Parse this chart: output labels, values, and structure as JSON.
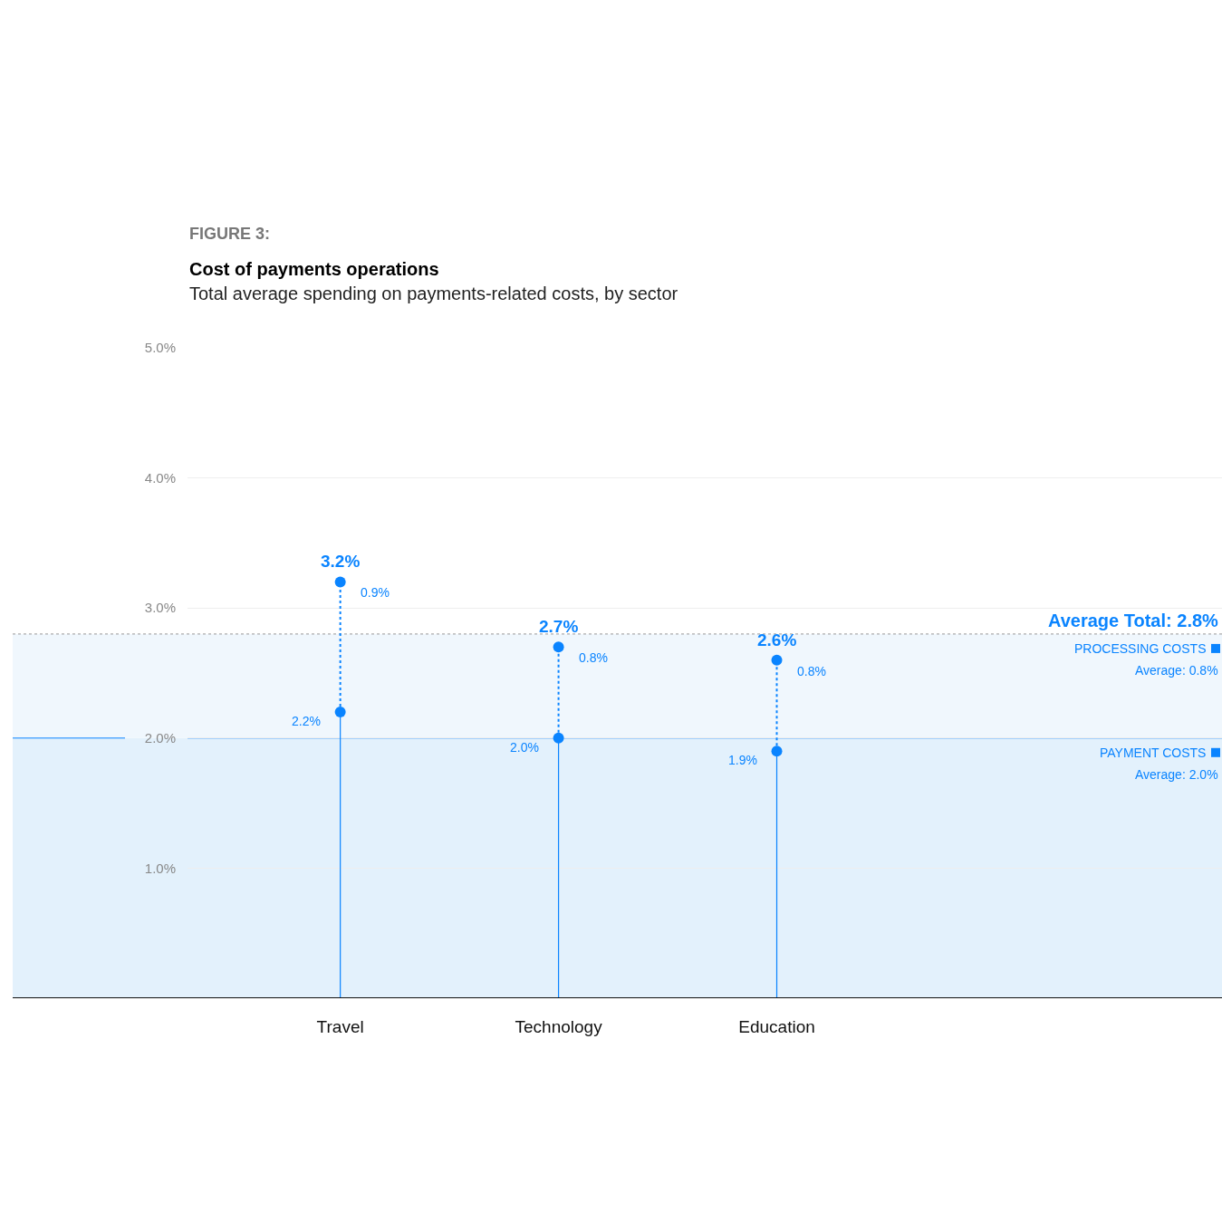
{
  "chart_data": {
    "type": "lollipop",
    "title": "Cost of payments operations",
    "subtitle": "Total average spending on payments-related costs, by sector",
    "categories": [
      "Travel",
      "Technology",
      "Education"
    ],
    "series": [
      {
        "color": "#0a84ff",
        "line_style": "solid",
        "values": [
          2.2,
          2.0,
          1.9
        ],
        "value_labels": [
          "2.2%",
          "2.0%",
          "1.9%"
        ]
      },
      {
        "color": "#0a84ff",
        "line_style": "dotted",
        "values": [
          3.2,
          2.7,
          2.6
        ],
        "value_labels": [
          "3.2%",
          "2.7%",
          "2.6%"
        ]
      }
    ],
    "ylim": [
      0,
      5
    ],
    "yticks": [
      {
        "value": 1,
        "label": "1.0%"
      },
      {
        "value": 2,
        "label": "2.0%"
      },
      {
        "value": 3,
        "label": "3.0%"
      },
      {
        "value": 4,
        "label": "4.0%"
      },
      {
        "value": 5,
        "label": "5.0%"
      }
    ],
    "grid": "y",
    "marker": "circle",
    "ref_lines": [
      {
        "axis": "y",
        "value": 2.8,
        "label": "Average Total: 2.8%",
        "line_style": "dotted",
        "color": "#999999"
      },
      {
        "axis": "y",
        "value": 2.0,
        "label": "Average: 2.0%",
        "line_style": "solid",
        "color": "#0a84ff"
      }
    ],
    "bands": [
      {
        "axis": "y",
        "from": 0,
        "to": 2.0,
        "label": "PAYMENT COSTS",
        "color": "#e3f1fc"
      },
      {
        "axis": "y",
        "from": 2.0,
        "to": 2.8,
        "label": "PROCESSING COSTS",
        "color": "#f0f7fd"
      }
    ],
    "annotations": [
      "FIGURE 3:",
      "Average: 0.8%",
      {
        "text": "0.9%",
        "x": "Travel",
        "y": 3.2
      },
      {
        "text": "0.8%",
        "x": "Technology",
        "y": 2.7
      },
      {
        "text": "0.8%",
        "x": "Education",
        "y": 2.6
      }
    ]
  }
}
